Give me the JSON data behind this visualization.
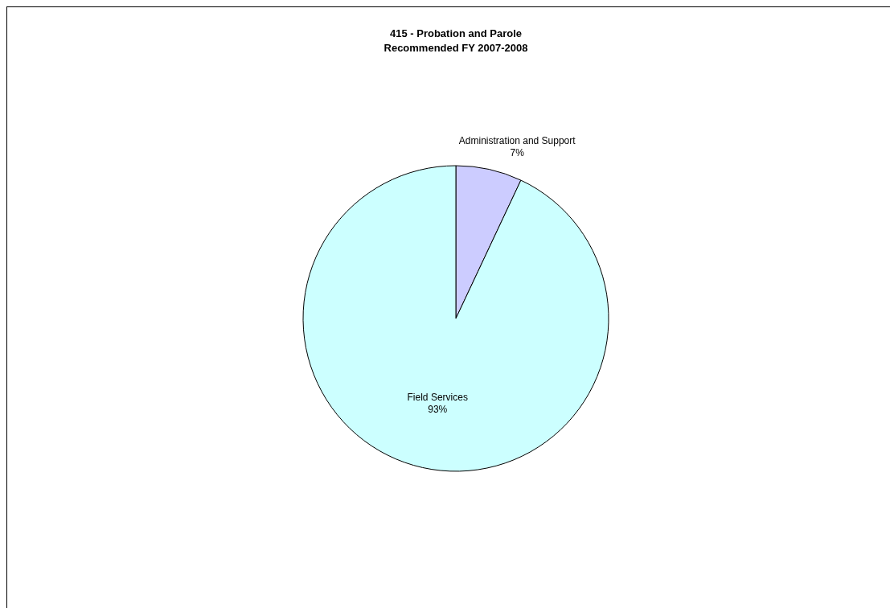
{
  "chart_data": {
    "type": "pie",
    "title": "415 - Probation and Parole",
    "subtitle": "Recommended FY 2007-2008",
    "categories": [
      "Administration and Support",
      "Field Services"
    ],
    "values": [
      7,
      93
    ],
    "colors": [
      "#ccccff",
      "#ccffff"
    ],
    "value_labels": [
      "7%",
      "93%"
    ]
  }
}
